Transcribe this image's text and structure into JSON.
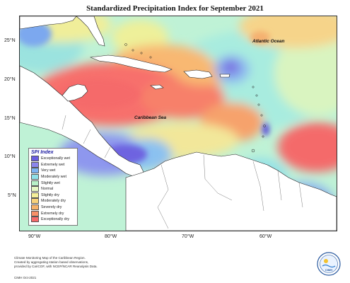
{
  "title": "Standardized Precipitation Index for September 2021",
  "labels": {
    "atlantic": "Atlantic Ocean",
    "caribbean": "Caribbean Sea"
  },
  "axes": {
    "lat_ticks": [
      "25°N",
      "20°N",
      "15°N",
      "10°N",
      "5°N"
    ],
    "lon_ticks": [
      "90°W",
      "80°W",
      "70°W",
      "60°W"
    ]
  },
  "legend": {
    "title": "SPI Index",
    "items": [
      {
        "label": "Exceptionally wet",
        "color": "#6a5de0"
      },
      {
        "label": "Extremely wet",
        "color": "#8c86ec"
      },
      {
        "label": "Very wet",
        "color": "#7fb4f2"
      },
      {
        "label": "Moderately wet",
        "color": "#8fe0e8"
      },
      {
        "label": "Slightly wet",
        "color": "#b8f0c8"
      },
      {
        "label": "Normal",
        "color": "#e6f7c4"
      },
      {
        "label": "Slightly dry",
        "color": "#f4ef9a"
      },
      {
        "label": "Moderately dry",
        "color": "#f8d27a"
      },
      {
        "label": "Severely dry",
        "color": "#f7b36a"
      },
      {
        "label": "Extremely dry",
        "color": "#f79068"
      },
      {
        "label": "Exceptionally dry",
        "color": "#f56a6a"
      }
    ]
  },
  "credit": {
    "line1": "Climate Monitoring Map of the Caribbean Region.",
    "line2": "Created by aggregating station based observations,",
    "line3": "provided by CariCOF, with NCEP/NCAR Reanalysis Data.",
    "id": "CIMH Oct-2021"
  },
  "logo": {
    "text": "CIMH"
  }
}
